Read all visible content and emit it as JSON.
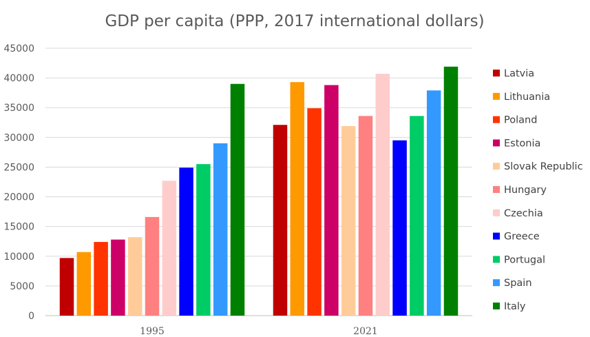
{
  "chart_data": {
    "type": "bar",
    "title": "GDP per capita (PPP, 2017 international dollars)",
    "xlabel": "",
    "ylabel": "",
    "ylim": [
      0,
      45000
    ],
    "yticks": [
      0,
      5000,
      10000,
      15000,
      20000,
      25000,
      30000,
      35000,
      40000,
      45000
    ],
    "grid": true,
    "legend_position": "right",
    "categories": [
      "1995",
      "2021"
    ],
    "series": [
      {
        "name": "Latvia",
        "color": "#c00000",
        "values": [
          9700,
          32100
        ]
      },
      {
        "name": "Lithuania",
        "color": "#ff9900",
        "values": [
          10700,
          39300
        ]
      },
      {
        "name": "Poland",
        "color": "#ff3300",
        "values": [
          12400,
          34900
        ]
      },
      {
        "name": "Estonia",
        "color": "#cc0066",
        "values": [
          12800,
          38800
        ]
      },
      {
        "name": "Slovak Republic",
        "color": "#ffcc99",
        "values": [
          13200,
          31900
        ]
      },
      {
        "name": "Hungary",
        "color": "#ff8080",
        "values": [
          16600,
          33600
        ]
      },
      {
        "name": "Czechia",
        "color": "#ffcccc",
        "values": [
          22700,
          40700
        ]
      },
      {
        "name": "Greece",
        "color": "#0000ff",
        "values": [
          24900,
          29500
        ]
      },
      {
        "name": "Portugal",
        "color": "#00cc66",
        "values": [
          25500,
          33600
        ]
      },
      {
        "name": "Spain",
        "color": "#3399ff",
        "values": [
          29000,
          37900
        ]
      },
      {
        "name": "Italy",
        "color": "#008000",
        "values": [
          39000,
          41900
        ]
      }
    ]
  }
}
